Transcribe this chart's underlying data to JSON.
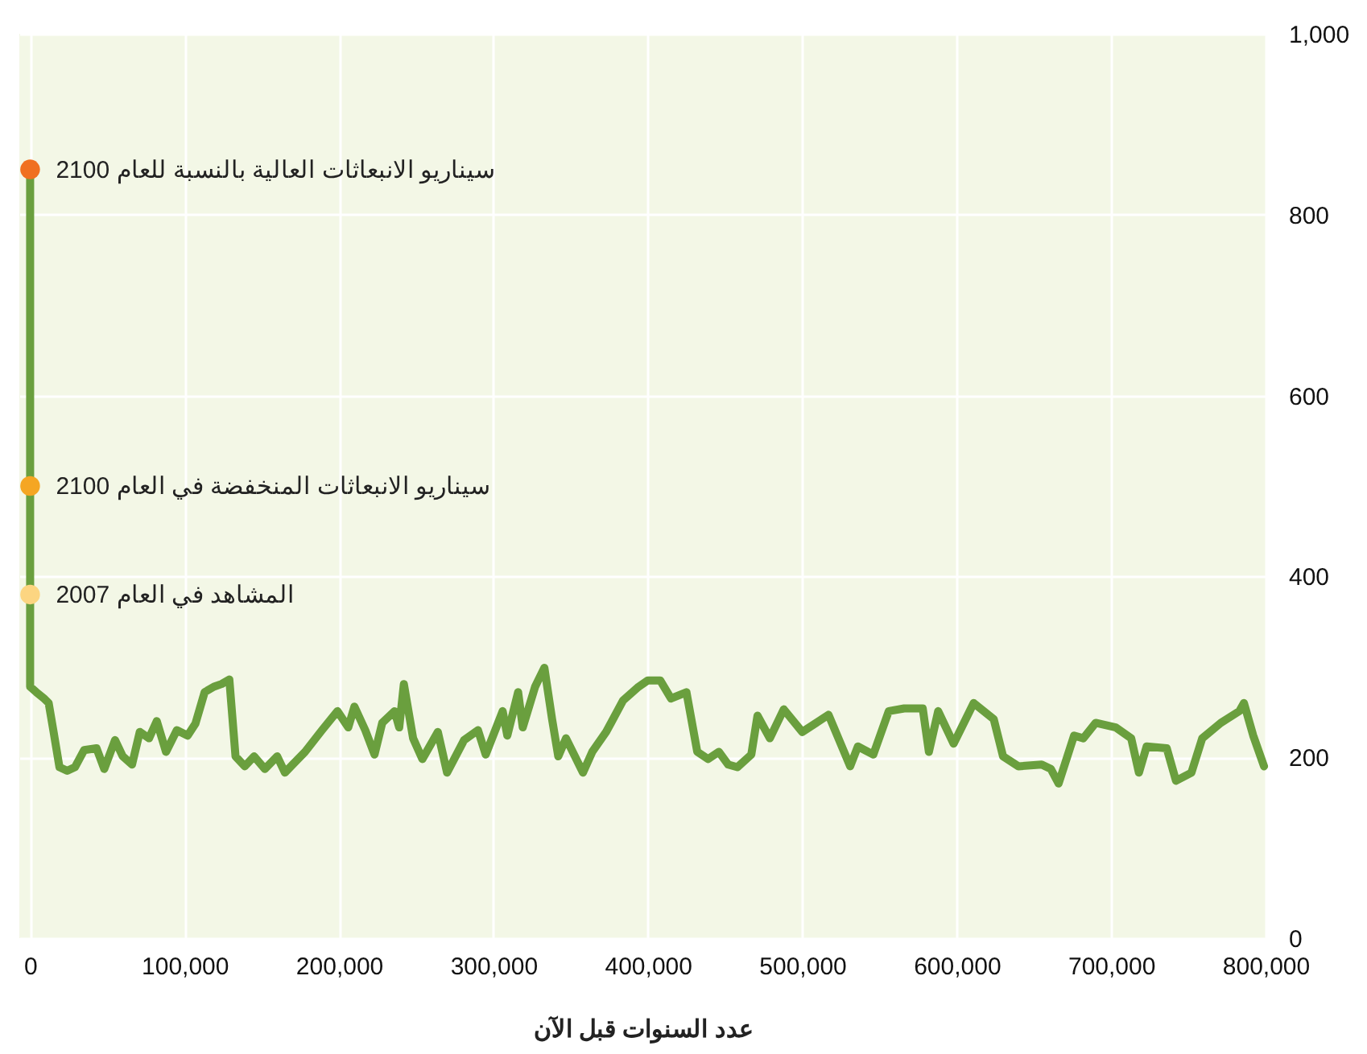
{
  "chart_data": {
    "type": "line",
    "xlabel": "عدد السنوات قبل الآن",
    "xlim": [
      -7000,
      800000
    ],
    "xticks": [
      0,
      {
        "value": 100000,
        "label": "100,000"
      },
      {
        "value": 200000,
        "label": "200,000"
      },
      {
        "value": 300000,
        "label": "300,000"
      },
      {
        "value": 400000,
        "label": "400,000"
      },
      {
        "value": 500000,
        "label": "500,000"
      },
      {
        "value": 600000,
        "label": "600,000"
      },
      {
        "value": 700000,
        "label": "700,000"
      },
      {
        "value": 800000,
        "label": "800,000"
      }
    ],
    "ylim": [
      0,
      1000
    ],
    "yticks": [
      0,
      200,
      400,
      600,
      800,
      {
        "value": 1000,
        "label": "1,000"
      }
    ],
    "grid": true,
    "legend": false,
    "line_style": "solid",
    "marker": "none",
    "series": [
      {
        "type": "line",
        "color": "#6a9f3e",
        "x": [
          0,
          0,
          4000,
          9000,
          12000,
          15000,
          19000,
          24000,
          29000,
          35000,
          43000,
          48000,
          55000,
          60000,
          66000,
          71000,
          77000,
          82000,
          88000,
          95000,
          102000,
          107000,
          113000,
          119000,
          124000,
          129000,
          133000,
          139000,
          145000,
          152000,
          160000,
          165000,
          170000,
          178000,
          189000,
          199000,
          206000,
          210000,
          217000,
          223000,
          228000,
          236000,
          239000,
          242000,
          248000,
          254000,
          264000,
          270000,
          281000,
          290000,
          295000,
          306000,
          309000,
          316000,
          319000,
          327000,
          333000,
          338000,
          342000,
          347000,
          358000,
          364000,
          373000,
          384000,
          394000,
          400000,
          408000,
          415000,
          425000,
          432000,
          439000,
          446000,
          452000,
          458000,
          467000,
          471000,
          479000,
          488000,
          500000,
          517000,
          531000,
          536000,
          546000,
          556000,
          566000,
          578000,
          582000,
          588000,
          598000,
          611000,
          624000,
          630000,
          640000,
          655000,
          661000,
          666000,
          676000,
          682000,
          690000,
          703000,
          713000,
          718000,
          723000,
          736000,
          742000,
          752000,
          759000,
          771000,
          783000,
          786000,
          792000,
          799000
        ],
        "values": [
          850,
          278,
          272,
          265,
          260,
          230,
          189,
          185,
          189,
          208,
          210,
          187,
          219,
          201,
          192,
          228,
          221,
          240,
          206,
          230,
          224,
          237,
          272,
          278,
          281,
          286,
          201,
          190,
          201,
          187,
          201,
          183,
          192,
          206,
          230,
          251,
          233,
          256,
          230,
          203,
          238,
          251,
          233,
          281,
          221,
          198,
          228,
          183,
          219,
          230,
          203,
          251,
          224,
          272,
          233,
          278,
          299,
          242,
          201,
          221,
          183,
          206,
          228,
          263,
          278,
          285,
          285,
          265,
          272,
          206,
          198,
          206,
          192,
          189,
          203,
          246,
          221,
          253,
          228,
          247,
          190,
          212,
          203,
          251,
          254,
          254,
          206,
          251,
          215,
          260,
          242,
          201,
          190,
          192,
          187,
          171,
          224,
          221,
          238,
          233,
          221,
          183,
          212,
          210,
          174,
          183,
          221,
          238,
          251,
          260,
          224,
          190
        ]
      },
      {
        "type": "scatter",
        "marker": "circle",
        "x": [
          0,
          0,
          0
        ],
        "values": [
          850,
          500,
          380
        ],
        "colors": [
          "#f07020",
          "#f5a623",
          "#fcd581"
        ]
      }
    ],
    "annotations": [
      "سيناريو الانبعاثات العالية بالنسبة للعام 2100",
      "سيناريو الانبعاثات المنخفضة في العام 2100",
      "المشاهد في العام 2007"
    ]
  }
}
